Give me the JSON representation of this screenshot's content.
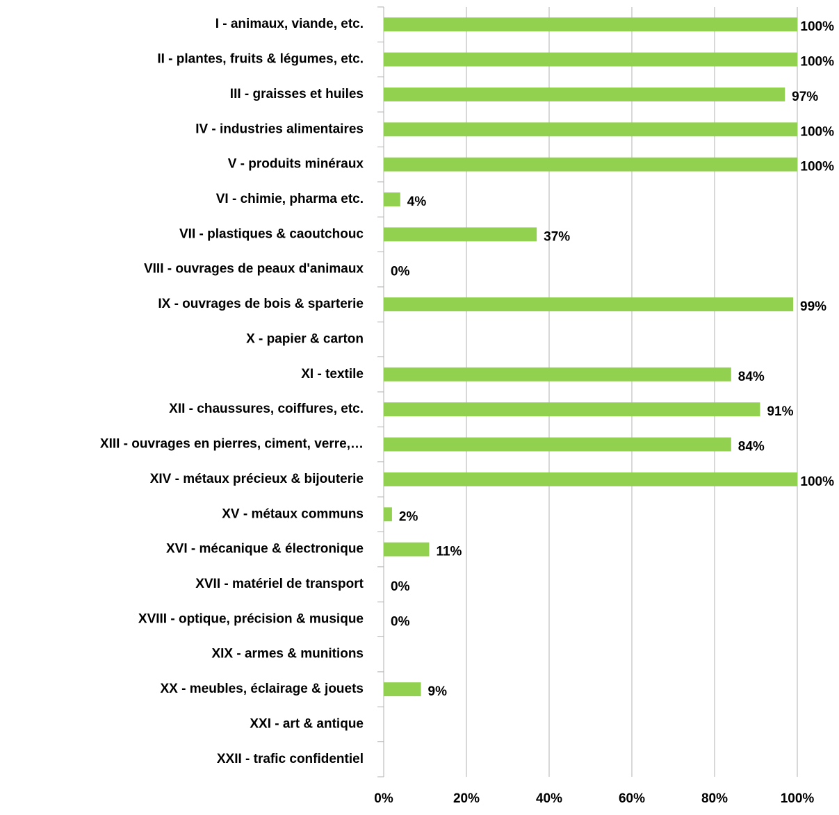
{
  "chart_data": {
    "type": "bar",
    "orientation": "horizontal",
    "categories": [
      "I - animaux, viande, etc.",
      "II - plantes, fruits & légumes, etc.",
      "III - graisses et huiles",
      "IV - industries alimentaires",
      "V - produits minéraux",
      "VI - chimie, pharma etc.",
      "VII - plastiques & caoutchouc",
      "VIII - ouvrages de peaux d'animaux",
      "IX - ouvrages de bois & sparterie",
      "X - papier & carton",
      "XI - textile",
      "XII - chaussures, coiffures, etc.",
      "XIII - ouvrages en pierres, ciment, verre,…",
      "XIV - métaux précieux & bijouterie",
      "XV - métaux communs",
      "XVI - mécanique & électronique",
      "XVII - matériel de transport",
      "XVIII - optique, précision & musique",
      "XIX - armes & munitions",
      "XX - meubles, éclairage & jouets",
      "XXI - art & antique",
      "XXII - trafic confidentiel"
    ],
    "values": [
      100,
      100,
      97,
      100,
      100,
      4,
      37,
      0,
      99,
      null,
      84,
      91,
      84,
      100,
      2,
      11,
      0,
      0,
      null,
      9,
      null,
      null
    ],
    "value_labels": [
      "100%",
      "100%",
      "97%",
      "100%",
      "100%",
      "4%",
      "37%",
      "0%",
      "99%",
      null,
      "84%",
      "91%",
      "84%",
      "100%",
      "2%",
      "11%",
      "0%",
      "0%",
      null,
      "9%",
      null,
      null
    ],
    "color": "#92d050",
    "xlim": [
      0,
      100
    ],
    "xticks": [
      {
        "value": 0,
        "label": "0%"
      },
      {
        "value": 20,
        "label": "20%"
      },
      {
        "value": 40,
        "label": "40%"
      },
      {
        "value": 60,
        "label": "60%"
      },
      {
        "value": 80,
        "label": "80%"
      },
      {
        "value": 100,
        "label": "100%"
      }
    ],
    "grid": true
  }
}
